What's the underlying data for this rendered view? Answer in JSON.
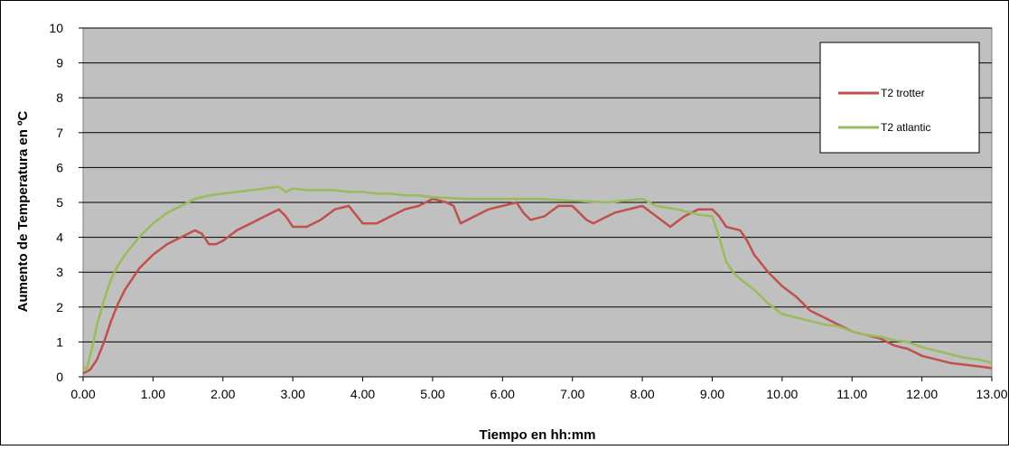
{
  "chart_data": {
    "type": "line",
    "title": "",
    "xlabel": "Tiempo en hh:mm",
    "ylabel": "Aumento de Temperatura en ºC",
    "xlim": [
      0,
      13
    ],
    "ylim": [
      0,
      10
    ],
    "x_ticks": [
      "0.00",
      "1.00",
      "2.00",
      "3.00",
      "4.00",
      "5.00",
      "6.00",
      "7.00",
      "8.00",
      "9.00",
      "10.00",
      "11.00",
      "12.00",
      "13.00"
    ],
    "y_ticks": [
      "0",
      "1",
      "2",
      "3",
      "4",
      "5",
      "6",
      "7",
      "8",
      "9",
      "10"
    ],
    "grid": "horizontal",
    "legend_position": "top-right",
    "plot_background": "#c0c0c0",
    "series": [
      {
        "name": "T2 trotter",
        "color": "#c0504d",
        "x": [
          0,
          0.1,
          0.2,
          0.3,
          0.4,
          0.5,
          0.6,
          0.7,
          0.8,
          1.0,
          1.2,
          1.4,
          1.6,
          1.7,
          1.8,
          1.9,
          2.0,
          2.2,
          2.4,
          2.6,
          2.8,
          2.9,
          3.0,
          3.2,
          3.4,
          3.6,
          3.8,
          4.0,
          4.2,
          4.4,
          4.6,
          4.8,
          5.0,
          5.2,
          5.3,
          5.4,
          5.6,
          5.8,
          6.0,
          6.2,
          6.3,
          6.4,
          6.6,
          6.8,
          7.0,
          7.2,
          7.3,
          7.4,
          7.6,
          7.8,
          8.0,
          8.2,
          8.4,
          8.6,
          8.8,
          9.0,
          9.1,
          9.2,
          9.4,
          9.5,
          9.6,
          9.8,
          10.0,
          10.2,
          10.4,
          10.6,
          10.8,
          11.0,
          11.2,
          11.4,
          11.6,
          11.8,
          12.0,
          12.2,
          12.4,
          12.6,
          12.8,
          13.0
        ],
        "y": [
          0.1,
          0.2,
          0.5,
          1.0,
          1.6,
          2.1,
          2.5,
          2.8,
          3.1,
          3.5,
          3.8,
          4.0,
          4.2,
          4.1,
          3.8,
          3.8,
          3.9,
          4.2,
          4.4,
          4.6,
          4.8,
          4.6,
          4.3,
          4.3,
          4.5,
          4.8,
          4.9,
          4.4,
          4.4,
          4.6,
          4.8,
          4.9,
          5.1,
          5.0,
          4.9,
          4.4,
          4.6,
          4.8,
          4.9,
          5.0,
          4.7,
          4.5,
          4.6,
          4.9,
          4.9,
          4.5,
          4.4,
          4.5,
          4.7,
          4.8,
          4.9,
          4.6,
          4.3,
          4.6,
          4.8,
          4.8,
          4.6,
          4.3,
          4.2,
          3.9,
          3.5,
          3.0,
          2.6,
          2.3,
          1.9,
          1.7,
          1.5,
          1.3,
          1.2,
          1.1,
          0.9,
          0.8,
          0.6,
          0.5,
          0.4,
          0.35,
          0.3,
          0.25
        ]
      },
      {
        "name": "T2 atlantic",
        "color": "#9bbb59",
        "x": [
          0,
          0.05,
          0.1,
          0.15,
          0.2,
          0.3,
          0.4,
          0.5,
          0.6,
          0.8,
          1.0,
          1.2,
          1.4,
          1.6,
          1.8,
          2.0,
          2.2,
          2.4,
          2.6,
          2.8,
          2.9,
          3.0,
          3.2,
          3.4,
          3.6,
          3.8,
          4.0,
          4.2,
          4.4,
          4.6,
          4.8,
          5.0,
          5.5,
          6.0,
          6.5,
          7.0,
          7.5,
          8.0,
          8.2,
          8.5,
          8.8,
          9.0,
          9.1,
          9.2,
          9.3,
          9.4,
          9.6,
          9.8,
          10.0,
          10.2,
          10.4,
          10.6,
          10.8,
          11.0,
          11.2,
          11.4,
          11.6,
          11.8,
          12.0,
          12.2,
          12.4,
          12.6,
          12.8,
          13.0
        ],
        "y": [
          0.3,
          0.2,
          0.6,
          1.0,
          1.5,
          2.2,
          2.8,
          3.2,
          3.5,
          4.0,
          4.4,
          4.7,
          4.9,
          5.1,
          5.2,
          5.25,
          5.3,
          5.35,
          5.4,
          5.45,
          5.3,
          5.4,
          5.35,
          5.35,
          5.35,
          5.3,
          5.3,
          5.25,
          5.25,
          5.2,
          5.2,
          5.15,
          5.1,
          5.1,
          5.1,
          5.05,
          5.0,
          5.1,
          4.9,
          4.8,
          4.65,
          4.6,
          4.0,
          3.3,
          3.0,
          2.8,
          2.5,
          2.1,
          1.8,
          1.7,
          1.6,
          1.5,
          1.45,
          1.3,
          1.2,
          1.15,
          1.05,
          1.0,
          0.85,
          0.75,
          0.65,
          0.55,
          0.5,
          0.4
        ]
      }
    ]
  }
}
